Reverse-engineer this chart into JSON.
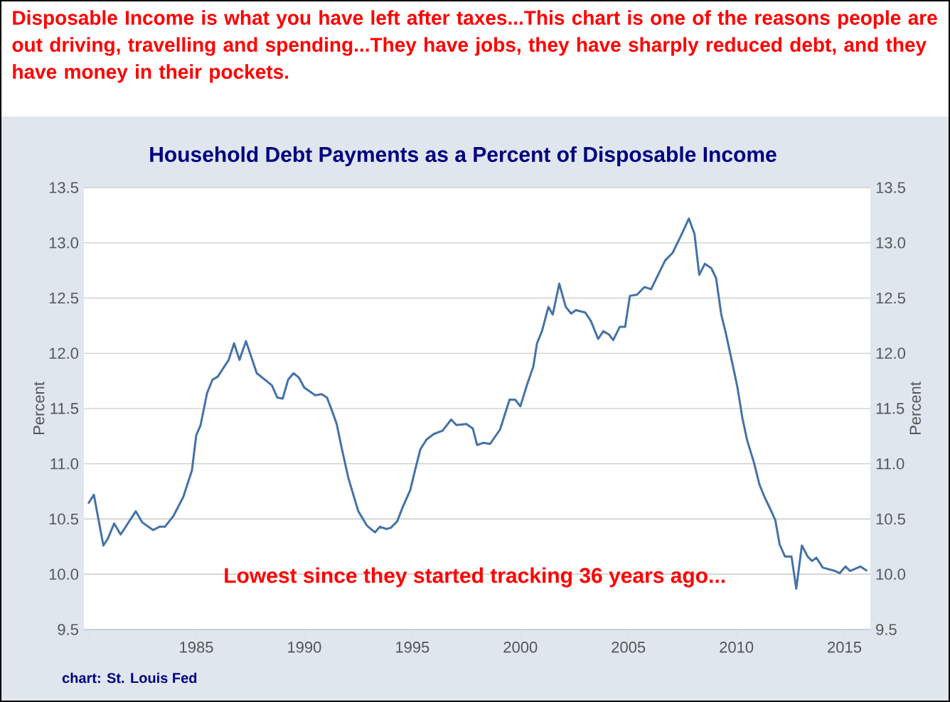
{
  "chart_data": {
    "type": "line",
    "title": "Household Debt Payments as a Percent of Disposable Income",
    "ylabel": "Percent",
    "y2label": "Percent",
    "annotations": [
      "Disposable Income is what you have left after taxes...This chart is one of the reasons people are out driving, travelling and spending...They have jobs, they have sharply reduced debt, and they have money in their pockets.",
      "Lowest since they started tracking 36 years ago...",
      "chart: St. Louis Fed"
    ],
    "x": [
      1980.0,
      1980.26,
      1980.7,
      1980.9,
      1981.2,
      1981.5,
      1982.2,
      1982.5,
      1983.0,
      1983.3,
      1983.55,
      1983.95,
      1984.4,
      1984.8,
      1985.0,
      1985.2,
      1985.5,
      1985.75,
      1986.0,
      1986.5,
      1986.75,
      1987.0,
      1987.3,
      1987.8,
      1988.25,
      1988.5,
      1988.75,
      1989.0,
      1989.25,
      1989.5,
      1989.75,
      1990.0,
      1990.5,
      1990.8,
      1991.05,
      1991.3,
      1991.5,
      1991.7,
      1992.04,
      1992.5,
      1992.9,
      1993.27,
      1993.5,
      1993.8,
      1994.0,
      1994.3,
      1994.56,
      1994.9,
      1995.15,
      1995.37,
      1995.66,
      1996.0,
      1996.4,
      1996.8,
      1997.04,
      1997.5,
      1997.8,
      1998.0,
      1998.3,
      1998.6,
      1999.06,
      1999.5,
      1999.76,
      2000.0,
      2000.3,
      2000.6,
      2000.77,
      2001.0,
      2001.3,
      2001.5,
      2001.8,
      2002.1,
      2002.35,
      2002.57,
      2003.0,
      2003.27,
      2003.6,
      2003.84,
      2004.1,
      2004.3,
      2004.6,
      2004.85,
      2005.07,
      2005.4,
      2005.74,
      2006.05,
      2006.4,
      2006.7,
      2007.05,
      2007.4,
      2007.8,
      2008.06,
      2008.28,
      2008.54,
      2008.84,
      2009.06,
      2009.3,
      2009.5,
      2009.8,
      2010.05,
      2010.28,
      2010.5,
      2010.8,
      2011.07,
      2011.3,
      2011.57,
      2011.8,
      2012.0,
      2012.25,
      2012.55,
      2012.77,
      2013.03,
      2013.3,
      2013.5,
      2013.7,
      2014.0,
      2014.56,
      2014.78,
      2015.05,
      2015.26,
      2015.74,
      2016.05
    ],
    "series": [
      {
        "color": "#4572a7",
        "values": [
          10.64,
          10.72,
          10.26,
          10.32,
          10.46,
          10.36,
          10.57,
          10.47,
          10.4,
          10.43,
          10.43,
          10.53,
          10.7,
          10.94,
          11.26,
          11.35,
          11.64,
          11.76,
          11.79,
          11.94,
          12.09,
          11.94,
          12.11,
          11.82,
          11.75,
          11.71,
          11.6,
          11.59,
          11.76,
          11.82,
          11.78,
          11.69,
          11.62,
          11.63,
          11.6,
          11.47,
          11.36,
          11.17,
          10.87,
          10.57,
          10.44,
          10.38,
          10.43,
          10.41,
          10.42,
          10.48,
          10.61,
          10.76,
          10.96,
          11.13,
          11.22,
          11.27,
          11.3,
          11.4,
          11.35,
          11.36,
          11.32,
          11.17,
          11.19,
          11.18,
          11.31,
          11.58,
          11.58,
          11.52,
          11.71,
          11.88,
          12.09,
          12.2,
          12.42,
          12.35,
          12.63,
          12.42,
          12.36,
          12.39,
          12.37,
          12.29,
          12.13,
          12.2,
          12.17,
          12.12,
          12.24,
          12.24,
          12.52,
          12.53,
          12.6,
          12.58,
          12.72,
          12.84,
          12.91,
          13.05,
          13.22,
          13.08,
          12.71,
          12.81,
          12.77,
          12.68,
          12.35,
          12.19,
          11.92,
          11.69,
          11.41,
          11.21,
          11.02,
          10.81,
          10.7,
          10.59,
          10.49,
          10.27,
          10.16,
          10.16,
          9.87,
          10.26,
          10.16,
          10.12,
          10.15,
          10.06,
          10.03,
          10.01,
          10.07,
          10.03,
          10.07,
          10.03
        ]
      }
    ],
    "xlim": [
      1979.8,
      2016.2
    ],
    "xticks": [
      {
        "value": 1980,
        "label": null
      },
      1985,
      1990,
      1995,
      2000,
      2005,
      2010,
      2015
    ],
    "ylim": [
      9.5,
      13.5
    ],
    "yticks": [
      9.5,
      {
        "value": 10,
        "label": "10.0"
      },
      10.5,
      {
        "value": 11,
        "label": "11.0"
      },
      11.5,
      {
        "value": 12,
        "label": "12.0"
      },
      12.5,
      {
        "value": 13,
        "label": "13.0"
      },
      13.5
    ],
    "y2lim": [
      9.5,
      13.5
    ],
    "y2ticks": [
      9.5,
      {
        "value": 10,
        "label": "10.0"
      },
      10.5,
      {
        "value": 11,
        "label": "11.0"
      },
      11.5,
      {
        "value": 12,
        "label": "12.0"
      },
      12.5,
      {
        "value": 13,
        "label": "13.0"
      },
      13.5
    ],
    "grid": "y",
    "marker": "none",
    "line_style": "solid"
  }
}
